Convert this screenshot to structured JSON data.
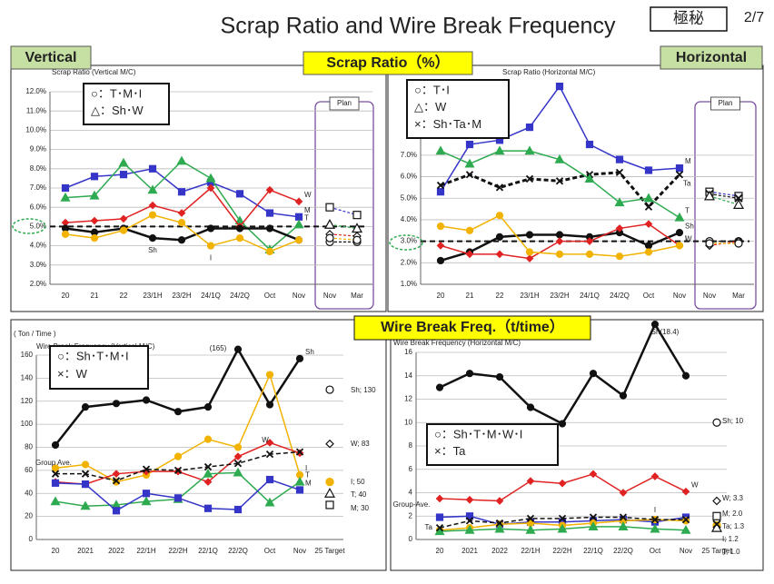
{
  "header": {
    "title": "Scrap Ratio and Wire Break Frequency",
    "classification": "極秘",
    "page": "2/7"
  },
  "labels": {
    "vertical": "Vertical",
    "horizontal": "Horizontal",
    "scrap": "Scrap Ratio（%）",
    "wire": "Wire Break Freq.（t/time）"
  },
  "chart_data": [
    {
      "type": "line",
      "title": "Scrap Ratio (Vertical M/C)",
      "categories": [
        "20",
        "21",
        "22",
        "23/1H",
        "23/2H",
        "24/1Q",
        "24/2Q",
        "Oct",
        "Nov"
      ],
      "plan_label": "Plan",
      "plan_categories": [
        "Nov",
        "Mar"
      ],
      "ylim": [
        2.0,
        12.0
      ],
      "yticks": [
        {
          "value": 2.0,
          "label": "2.0%"
        },
        {
          "value": 3.0,
          "label": "3.0%"
        },
        {
          "value": 4.0,
          "label": "4.0%"
        },
        {
          "value": 5.0,
          "label": "5.0%"
        },
        {
          "value": 6.0,
          "label": "6.0%"
        },
        {
          "value": 7.0,
          "label": "7.0%"
        },
        {
          "value": 8.0,
          "label": "8.0%"
        },
        {
          "value": 9.0,
          "label": "9.0%"
        },
        {
          "value": 10.0,
          "label": "10.0%"
        },
        {
          "value": 11.0,
          "label": "11.0%"
        },
        {
          "value": 12.0,
          "label": "12.0%"
        }
      ],
      "grid": true,
      "target_line": 5.0,
      "legend": [
        "○：T･M･I",
        "△：Sh･W"
      ],
      "series": [
        {
          "name": "M",
          "color": "#3535c8",
          "marker": "square",
          "values": [
            7.0,
            7.6,
            7.7,
            8.0,
            6.8,
            7.3,
            6.7,
            5.7,
            5.5
          ],
          "plan": [
            6.0,
            5.6
          ]
        },
        {
          "name": "T",
          "color": "#2eaa50",
          "marker": "triangle",
          "values": [
            6.5,
            6.6,
            8.3,
            6.9,
            8.4,
            7.5,
            5.3,
            3.8,
            5.1
          ],
          "plan": [
            5.1,
            4.9
          ]
        },
        {
          "name": "W",
          "color": "#e02222",
          "marker": "diamond",
          "values": [
            5.2,
            5.3,
            5.4,
            6.1,
            5.7,
            7.0,
            5.0,
            6.9,
            6.3
          ],
          "plan": [
            4.6,
            4.5
          ]
        },
        {
          "name": "Sh",
          "color": "#111111",
          "marker": "circle",
          "width": 2.5,
          "values": [
            4.9,
            4.7,
            4.9,
            4.4,
            4.3,
            4.9,
            4.9,
            4.9,
            4.3
          ],
          "plan": [
            4.2,
            4.2
          ]
        },
        {
          "name": "I",
          "color": "#f2b200",
          "marker": "circle",
          "values": [
            4.6,
            4.4,
            4.8,
            5.6,
            5.2,
            4.0,
            4.4,
            3.7,
            4.3
          ],
          "plan": [
            4.4,
            4.3
          ]
        }
      ]
    },
    {
      "type": "line",
      "title": "Scrap Ratio  (Horizontal M/C)",
      "categories": [
        "20",
        "21",
        "22",
        "23/1H",
        "23/2H",
        "24/1Q",
        "24/2Q",
        "Oct",
        "Nov"
      ],
      "plan_label": "Plan",
      "plan_categories": [
        "Nov",
        "Mar"
      ],
      "ylim": [
        1.0,
        10.5
      ],
      "yticks": [
        {
          "value": 1.0,
          "label": "1.0%"
        },
        {
          "value": 2.0,
          "label": "2.0%"
        },
        {
          "value": 3.0,
          "label": "3.0%"
        },
        {
          "value": 4.0,
          "label": "4.0%"
        },
        {
          "value": 5.0,
          "label": "5.0%"
        },
        {
          "value": 6.0,
          "label": "6.0%"
        },
        {
          "value": 7.0,
          "label": "7.0%"
        }
      ],
      "grid": true,
      "target_line": 3.0,
      "legend": [
        "○：T･I",
        "△：W",
        "×：Sh･Ta･M"
      ],
      "series": [
        {
          "name": "M",
          "color": "#3535c8",
          "marker": "square",
          "values": [
            5.3,
            7.5,
            7.7,
            8.3,
            10.2,
            7.5,
            6.8,
            6.3,
            6.4
          ],
          "plan": [
            5.3,
            5.1
          ]
        },
        {
          "name": "Ta",
          "color": "#111111",
          "marker": "x",
          "dash": true,
          "width": 3,
          "values": [
            5.6,
            6.1,
            5.5,
            5.9,
            5.8,
            6.1,
            6.2,
            4.6,
            6.1
          ],
          "plan": [
            5.2,
            5.0
          ]
        },
        {
          "name": "T",
          "color": "#2eaa50",
          "marker": "triangle",
          "values": [
            7.2,
            6.6,
            7.2,
            7.2,
            6.8,
            5.9,
            4.8,
            5.0,
            4.1
          ],
          "plan": [
            5.1,
            4.7
          ]
        },
        {
          "name": "Sh",
          "color": "#111111",
          "marker": "circle",
          "width": 2.5,
          "values": [
            2.1,
            2.5,
            3.2,
            3.3,
            3.3,
            3.2,
            3.4,
            2.8,
            3.4
          ],
          "plan": [
            3.0,
            3.0
          ]
        },
        {
          "name": "W",
          "color": "#e02222",
          "marker": "diamond",
          "values": [
            2.8,
            2.4,
            2.4,
            2.2,
            3.0,
            3.0,
            3.6,
            3.8,
            2.8
          ],
          "plan": [
            2.8,
            3.0
          ]
        },
        {
          "name": "I",
          "color": "#f2b200",
          "marker": "circle",
          "values": [
            3.7,
            3.5,
            4.2,
            2.5,
            2.4,
            2.4,
            2.3,
            2.5,
            2.8
          ],
          "plan": [
            2.9,
            2.9
          ]
        }
      ]
    },
    {
      "type": "line",
      "title": "Wire Break Frequency (Vertical M/C)",
      "ylabel": "( Ton / Time )",
      "categories": [
        "20",
        "2021",
        "2022",
        "22/1H",
        "22/2H",
        "22/1Q",
        "22/2Q",
        "Oct",
        "Nov"
      ],
      "target_category": "25 Target",
      "ylim": [
        0,
        160
      ],
      "yticks": [
        0,
        20,
        40,
        60,
        80,
        100,
        120,
        140,
        160
      ],
      "grid": true,
      "legend": [
        "○：Sh･T･M･I",
        "×：W"
      ],
      "annotations": [
        "(165)"
      ],
      "series": [
        {
          "name": "Sh",
          "color": "#111111",
          "marker": "circle",
          "width": 2.5,
          "values": [
            82,
            115,
            118,
            121,
            111,
            115,
            165,
            117,
            157
          ],
          "target": 130,
          "target_label": "Sh; 130"
        },
        {
          "name": "I",
          "color": "#f2b200",
          "marker": "circle",
          "values": [
            62,
            65,
            50,
            56,
            72,
            87,
            80,
            143,
            56
          ],
          "target": 50,
          "target_label": "I; 50"
        },
        {
          "name": "W",
          "color": "#e02222",
          "marker": "diamond",
          "values": [
            50,
            48,
            57,
            59,
            59,
            50,
            72,
            84,
            75
          ],
          "target": 83,
          "target_label": "W; 83"
        },
        {
          "name": "Group Ave.",
          "color": "#111111",
          "marker": "x",
          "dash": true,
          "values": [
            57,
            57,
            51,
            61,
            60,
            63,
            66,
            74,
            76
          ]
        },
        {
          "name": "T",
          "color": "#2eaa50",
          "marker": "triangle",
          "values": [
            33,
            29,
            30,
            33,
            35,
            57,
            58,
            32,
            50
          ],
          "target": 40,
          "target_label": "T; 40"
        },
        {
          "name": "M",
          "color": "#3535c8",
          "marker": "square",
          "values": [
            49,
            48,
            25,
            40,
            36,
            27,
            26,
            52,
            43
          ],
          "target": 30,
          "target_label": "M; 30"
        }
      ]
    },
    {
      "type": "line",
      "title": "Wire Break Frequency (Horizontal M/C)",
      "categories": [
        "20",
        "2021",
        "2022",
        "22/1H",
        "22/2H",
        "22/1Q",
        "22/2Q",
        "Oct",
        "Nov"
      ],
      "target_category": "25 Target",
      "ylim": [
        0,
        16
      ],
      "yticks": [
        0,
        2,
        4,
        6,
        8,
        10,
        12,
        14,
        16
      ],
      "grid": true,
      "legend": [
        "○：Sh･T･M･W･I",
        "×：Ta"
      ],
      "annotations": [
        "Sh(18.4)",
        "Group-Ave."
      ],
      "series": [
        {
          "color": "#111111",
          "marker": "circle",
          "width": 2.5,
          "values": [
            13,
            14.2,
            13.9,
            11.3,
            9.9,
            14.2,
            12.3,
            18.4,
            14.0
          ],
          "target": 10,
          "target_label": "Sh; 10"
        },
        {
          "name": "W",
          "color": "#e02222",
          "marker": "diamond",
          "values": [
            3.5,
            3.4,
            3.3,
            5.0,
            4.8,
            5.6,
            4.0,
            5.4,
            4.1
          ],
          "target": 3.3,
          "target_label": "W; 3.3"
        },
        {
          "color": "#3535c8",
          "marker": "square",
          "values": [
            1.9,
            2.0,
            1.3,
            1.5,
            1.5,
            1.6,
            1.7,
            1.5,
            1.9
          ],
          "target": 2.0,
          "target_label": "M; 2.0"
        },
        {
          "name": "I",
          "color": "#f2b200",
          "marker": "circle",
          "values": [
            0.8,
            1.0,
            1.3,
            1.4,
            1.2,
            1.4,
            1.6,
            1.7,
            1.6
          ],
          "target": 1.2,
          "target_label": "I; 1.2"
        },
        {
          "color": "#2eaa50",
          "marker": "triangle",
          "values": [
            0.7,
            0.8,
            0.9,
            0.8,
            0.9,
            1.1,
            1.1,
            0.9,
            0.8
          ],
          "target": 1.0,
          "target_label": "T; 1.0"
        },
        {
          "name": "Ta",
          "color": "#111111",
          "marker": "x",
          "dash": true,
          "values": [
            1.0,
            1.6,
            1.4,
            1.8,
            1.8,
            1.9,
            1.9,
            1.7,
            1.7
          ],
          "target": 1.3,
          "target_label": "Ta; 1.3"
        }
      ]
    }
  ]
}
